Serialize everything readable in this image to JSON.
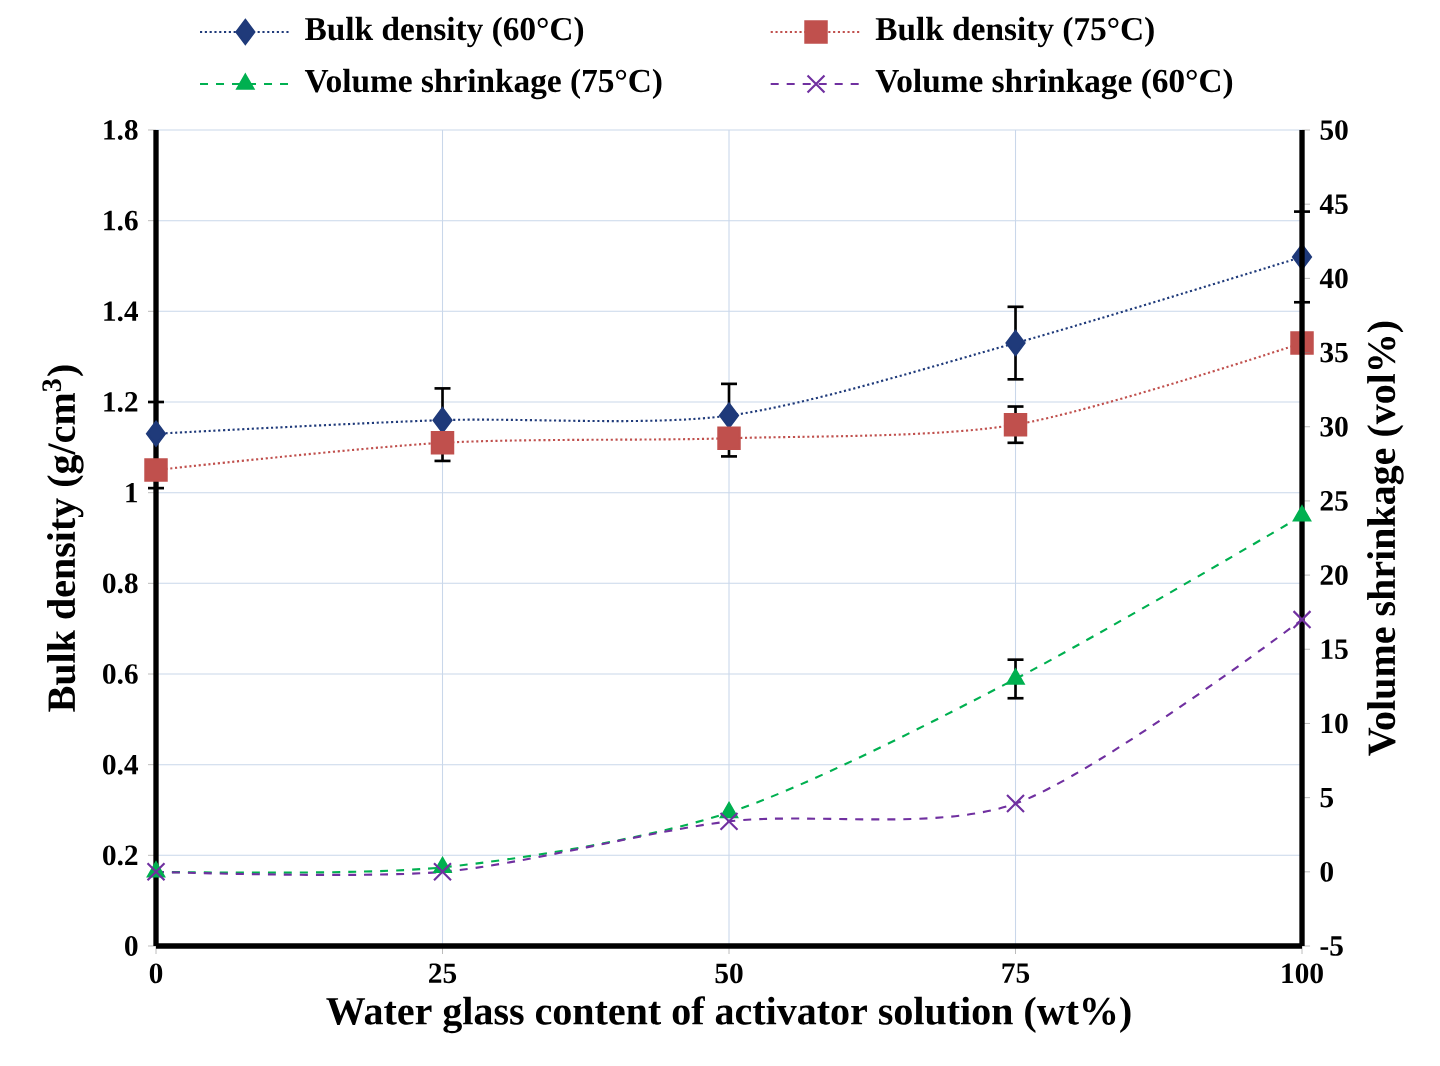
{
  "chart_data": {
    "type": "line",
    "xlabel": "Water glass content of activator solution (wt%)",
    "ylabel": "Bulk density (g/cm$^{3}$)",
    "y2label": "Volume shrinkage  (vol%)",
    "x": [
      0,
      25,
      50,
      75,
      100
    ],
    "xlim": [
      0,
      100
    ],
    "xticks": [
      0,
      25,
      50,
      75,
      100
    ],
    "ylim": [
      0,
      1.8
    ],
    "yticks": [
      0,
      0.2,
      0.4,
      0.6,
      0.8,
      1,
      1.2,
      1.4,
      1.6,
      1.8
    ],
    "y2lim": [
      -5,
      50
    ],
    "y2ticks": [
      -5,
      0,
      5,
      10,
      15,
      20,
      25,
      30,
      35,
      40,
      45,
      50
    ],
    "grid": true,
    "legend": "top",
    "series": [
      {
        "name": "Bulk density (60°C)",
        "color": "#1f3a7a",
        "marker": "diamond",
        "line_style": "dotted",
        "values": [
          1.13,
          1.16,
          1.17,
          1.33,
          1.52
        ],
        "errors": [
          [
            1.13,
            1.2
          ],
          [
            1.16,
            1.23
          ],
          [
            1.17,
            1.24
          ],
          0.08,
          0.1
        ]
      },
      {
        "name": "Bulk density (75°C)",
        "color": "#c0504d",
        "marker": "square",
        "line_style": "dotted",
        "values": [
          1.05,
          1.11,
          1.12,
          1.15,
          1.33
        ],
        "errors": [
          [
            1.01,
            1.05
          ],
          [
            1.07,
            1.11
          ],
          [
            1.08,
            1.12
          ],
          0.04,
          null
        ]
      },
      {
        "name": "Volume shrinkage (75°C)",
        "color": "#00b050",
        "marker": "triangle",
        "line_style": "dashed",
        "axis": "y2",
        "values": [
          0,
          0.3,
          4,
          13,
          24
        ],
        "errors": [
          null,
          null,
          null,
          1.3,
          null
        ]
      },
      {
        "name": "Volume shrinkage (60°C)",
        "color": "#7030a0",
        "marker": "cross",
        "line_style": "dashed",
        "axis": "y2",
        "values": [
          0,
          0,
          3.4,
          4.6,
          17
        ],
        "errors": [
          null,
          null,
          null,
          null,
          null
        ]
      }
    ]
  }
}
